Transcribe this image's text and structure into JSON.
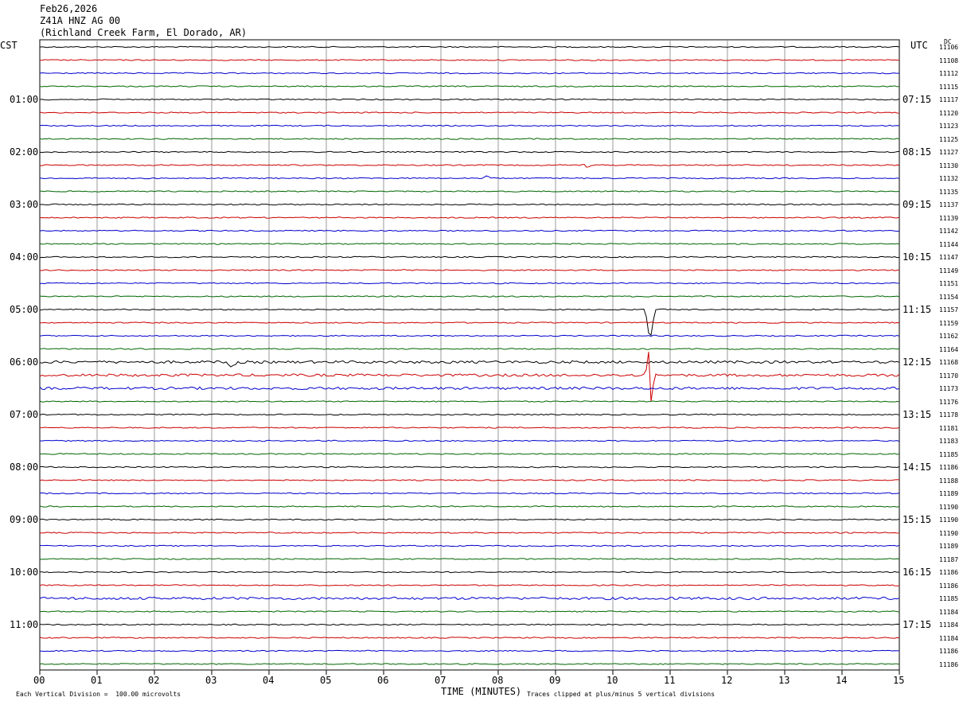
{
  "header": {
    "date": "Feb26,2026",
    "station": "Z41A HNZ AG 00",
    "location": "(Richland Creek Farm, El Dorado, AR)"
  },
  "left_zone": "CST",
  "right_zone": "UTC",
  "dc_label": "DC",
  "footer": {
    "xlabel": "TIME (MINUTES)",
    "scale_note": "Each Vertical Division =  100.00 microvolts",
    "clip_note": "Traces clipped at plus/minus 5 vertical divisions"
  },
  "colors": {
    "cycle": [
      "#000000",
      "#cc0000",
      "#0000cc",
      "#006600"
    ],
    "grid": "#999999"
  },
  "chart_data": {
    "type": "line",
    "title": "",
    "xlabel": "TIME (MINUTES)",
    "ylabel": "",
    "xlim": [
      0,
      15
    ],
    "x_ticks": [
      "00",
      "01",
      "02",
      "03",
      "04",
      "05",
      "06",
      "07",
      "08",
      "09",
      "10",
      "11",
      "12",
      "13",
      "14",
      "15"
    ],
    "left_hour_labels": [
      "01:00",
      "02:00",
      "03:00",
      "04:00",
      "05:00",
      "06:00",
      "07:00",
      "08:00",
      "09:00",
      "10:00",
      "11:00"
    ],
    "right_hour_labels": [
      "07:15",
      "08:15",
      "09:15",
      "10:15",
      "11:15",
      "12:15",
      "13:15",
      "14:15",
      "15:15",
      "16:15",
      "17:15"
    ],
    "dc_offsets": [
      "11106",
      "11108",
      "11112",
      "11115",
      "11117",
      "11120",
      "11123",
      "11125",
      "11127",
      "11130",
      "11132",
      "11135",
      "11137",
      "11139",
      "11142",
      "11144",
      "11147",
      "11149",
      "11151",
      "11154",
      "11157",
      "11159",
      "11162",
      "11164",
      "11168",
      "11170",
      "11173",
      "11176",
      "11178",
      "11181",
      "11183",
      "11185",
      "11186",
      "11188",
      "11189",
      "11190",
      "11190",
      "11190",
      "11189",
      "11187",
      "11186",
      "11186",
      "11185",
      "11184",
      "11184",
      "11184",
      "11186",
      "11186"
    ],
    "trace_count": 48,
    "events": [
      {
        "trace": 20,
        "minute": 10.65,
        "amplitude_divisions": 5
      },
      {
        "trace": 25,
        "minute": 10.65,
        "amplitude_divisions": 5
      },
      {
        "trace": 24,
        "minute": 3.35,
        "amplitude_divisions": 1
      },
      {
        "trace": 10,
        "minute": 7.8,
        "amplitude_divisions": 0.4
      },
      {
        "trace": 9,
        "minute": 9.55,
        "amplitude_divisions": 0.3
      }
    ]
  }
}
